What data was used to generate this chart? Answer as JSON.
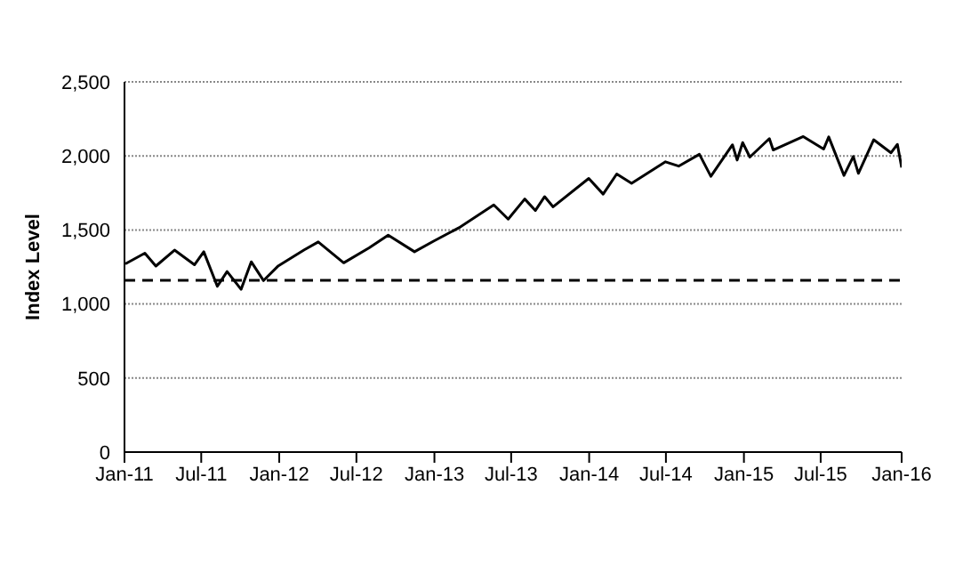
{
  "chart_data": {
    "type": "line",
    "ylabel": "Index Level",
    "x": [
      "2011-01-03",
      "2011-02-18",
      "2011-03-16",
      "2011-04-29",
      "2011-06-15",
      "2011-07-07",
      "2011-08-08",
      "2011-08-31",
      "2011-10-03",
      "2011-10-27",
      "2011-11-25",
      "2011-12-30",
      "2012-02-29",
      "2012-04-02",
      "2012-06-01",
      "2012-07-31",
      "2012-09-14",
      "2012-11-15",
      "2012-12-31",
      "2013-02-28",
      "2013-05-21",
      "2013-06-24",
      "2013-08-02",
      "2013-08-27",
      "2013-09-18",
      "2013-10-08",
      "2013-12-31",
      "2014-02-03",
      "2014-03-07",
      "2014-04-11",
      "2014-06-30",
      "2014-07-31",
      "2014-09-18",
      "2014-10-15",
      "2014-12-05",
      "2014-12-16",
      "2014-12-29",
      "2015-01-15",
      "2015-03-02",
      "2015-03-11",
      "2015-05-21",
      "2015-07-08",
      "2015-07-20",
      "2015-08-25",
      "2015-09-16",
      "2015-09-28",
      "2015-11-03",
      "2015-12-14",
      "2015-12-29",
      "2016-01-08"
    ],
    "series": [
      {
        "color": "#000000",
        "values": [
          1271,
          1343,
          1256,
          1364,
          1265,
          1353,
          1119,
          1219,
          1099,
          1285,
          1158,
          1258,
          1366,
          1419,
          1278,
          1379,
          1465,
          1353,
          1426,
          1515,
          1669,
          1573,
          1709,
          1631,
          1725,
          1656,
          1848,
          1742,
          1878,
          1815,
          1960,
          1931,
          2011,
          1862,
          2075,
          1972,
          2090,
          1992,
          2117,
          2040,
          2131,
          2046,
          2128,
          1868,
          1996,
          1882,
          2109,
          2021,
          2078,
          1922
        ]
      }
    ],
    "xlim": [
      "2011-01-01",
      "2016-01-08"
    ],
    "xticks": [
      {
        "value": "2011-01-01",
        "label": "Jan-11"
      },
      {
        "value": "2011-07-01",
        "label": "Jul-11"
      },
      {
        "value": "2012-01-01",
        "label": "Jan-12"
      },
      {
        "value": "2012-07-01",
        "label": "Jul-12"
      },
      {
        "value": "2013-01-01",
        "label": "Jan-13"
      },
      {
        "value": "2013-07-01",
        "label": "Jul-13"
      },
      {
        "value": "2014-01-01",
        "label": "Jan-14"
      },
      {
        "value": "2014-07-01",
        "label": "Jul-14"
      },
      {
        "value": "2015-01-01",
        "label": "Jan-15"
      },
      {
        "value": "2015-07-01",
        "label": "Jul-15"
      },
      {
        "value": "2016-01-08",
        "label": "Jan-16"
      }
    ],
    "ylim": [
      0,
      2500
    ],
    "yticks": [
      {
        "value": 0,
        "label": "0"
      },
      {
        "value": 500,
        "label": "500"
      },
      {
        "value": 1000,
        "label": "1,000"
      },
      {
        "value": 1500,
        "label": "1,500"
      },
      {
        "value": 2000,
        "label": "2,000"
      },
      {
        "value": 2500,
        "label": "2,500"
      }
    ],
    "ref_lines": [
      {
        "axis": "y",
        "value": 1160,
        "color": "#000000",
        "line_style": "dashed"
      }
    ],
    "grid": "y",
    "legend": false,
    "marker": "none",
    "line_style": "solid"
  }
}
